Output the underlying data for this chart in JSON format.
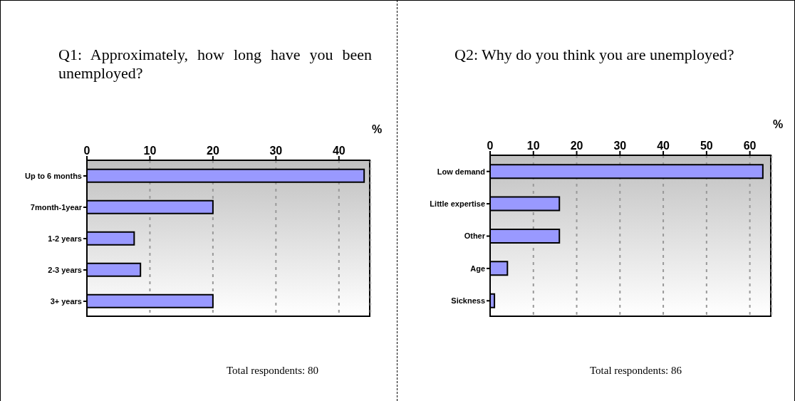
{
  "chart_data": [
    {
      "type": "bar",
      "orientation": "horizontal",
      "title": "Q1: Approximately, how long have you been unemployed?",
      "xlabel": "%",
      "categories": [
        "Up to 6 months",
        "7month-1year",
        "1-2 years",
        "2-3 years",
        "3+ years"
      ],
      "values": [
        44,
        20,
        7.5,
        8.5,
        20
      ],
      "color": "#9999ff",
      "xlim": [
        0,
        45
      ],
      "xticks": [
        0,
        10,
        20,
        30,
        40
      ],
      "grid": "x",
      "legend": false,
      "annotations": [
        "Total respondents: 80"
      ]
    },
    {
      "type": "bar",
      "orientation": "horizontal",
      "title": "Q2: Why do you think you are unemployed?",
      "xlabel": "%",
      "categories": [
        "Low demand",
        "Little expertise",
        "Other",
        "Age",
        "Sickness"
      ],
      "values": [
        63,
        16,
        16,
        4,
        1
      ],
      "color": "#9999ff",
      "xlim": [
        0,
        65
      ],
      "xticks": [
        0,
        10,
        20,
        30,
        40,
        50,
        60
      ],
      "grid": "x",
      "legend": false,
      "annotations": [
        "Total respondents: 86"
      ]
    }
  ]
}
